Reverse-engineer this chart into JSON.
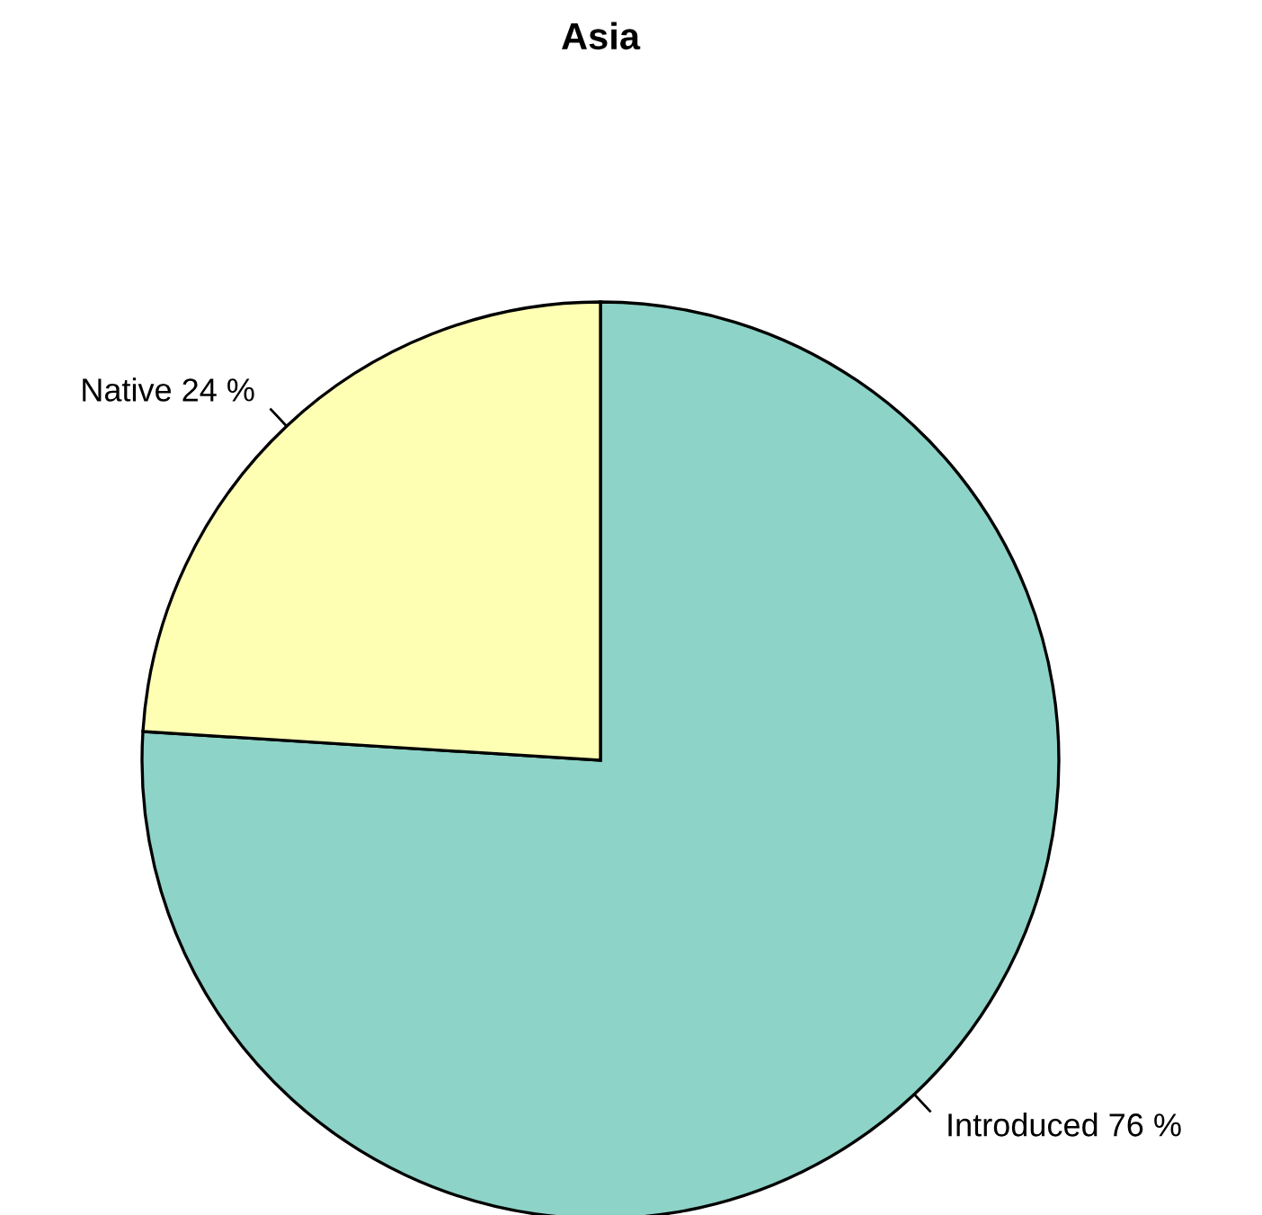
{
  "chart_data": {
    "type": "pie",
    "title": "Asia",
    "categories": [
      "Introduced",
      "Native"
    ],
    "values": [
      76,
      24
    ],
    "value_labels": [
      "76 %",
      "24 %"
    ],
    "colors": [
      "#8dd3c7",
      "#ffffb3"
    ]
  }
}
